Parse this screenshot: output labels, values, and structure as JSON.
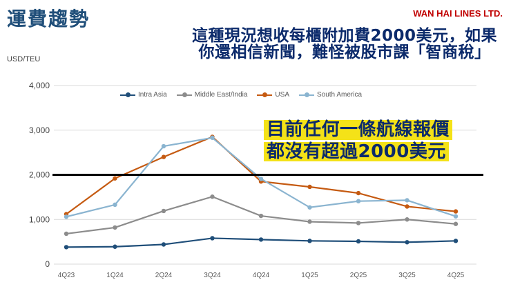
{
  "header": {
    "title": "運費趨勢",
    "brand": "WAN HAI LINES LTD."
  },
  "callouts": {
    "top_line1": "這種現況想收每櫃附加費2000美元，如果",
    "top_line2": "你還相信新聞，難怪被股市課「智商稅」",
    "mid_line1": "目前任何一條航線報價",
    "mid_line2": "都沒有超過2000美元"
  },
  "colors": {
    "Intra Asia": "#1f4e79",
    "Middle East/India": "#8c8c8c",
    "USA": "#c55a11",
    "South America": "#8ab4d0",
    "reference_line": "#000000",
    "grid": "#d9d9d9"
  },
  "chart_data": {
    "type": "line",
    "ylabel": "USD/TEU",
    "ylim": [
      0,
      4000
    ],
    "yticks": [
      0,
      1000,
      2000,
      3000,
      4000
    ],
    "ytick_labels": [
      "0",
      "1,000",
      "2,000",
      "3,000",
      "4,000"
    ],
    "grid": true,
    "legend_position": "top",
    "categories": [
      "4Q23",
      "1Q24",
      "2Q24",
      "3Q24",
      "4Q24",
      "1Q25",
      "2Q25",
      "3Q25",
      "4Q25"
    ],
    "series": [
      {
        "name": "Intra Asia",
        "values": [
          380,
          390,
          440,
          580,
          550,
          520,
          510,
          490,
          520
        ]
      },
      {
        "name": "Middle East/India",
        "values": [
          680,
          820,
          1190,
          1510,
          1080,
          950,
          920,
          1000,
          900
        ]
      },
      {
        "name": "USA",
        "values": [
          1120,
          1920,
          2400,
          2850,
          1850,
          1730,
          1590,
          1290,
          1180
        ]
      },
      {
        "name": "South America",
        "values": [
          1060,
          1330,
          2640,
          2830,
          1910,
          1270,
          1410,
          1430,
          1070
        ]
      }
    ],
    "reference_line": {
      "y": 2000
    }
  }
}
